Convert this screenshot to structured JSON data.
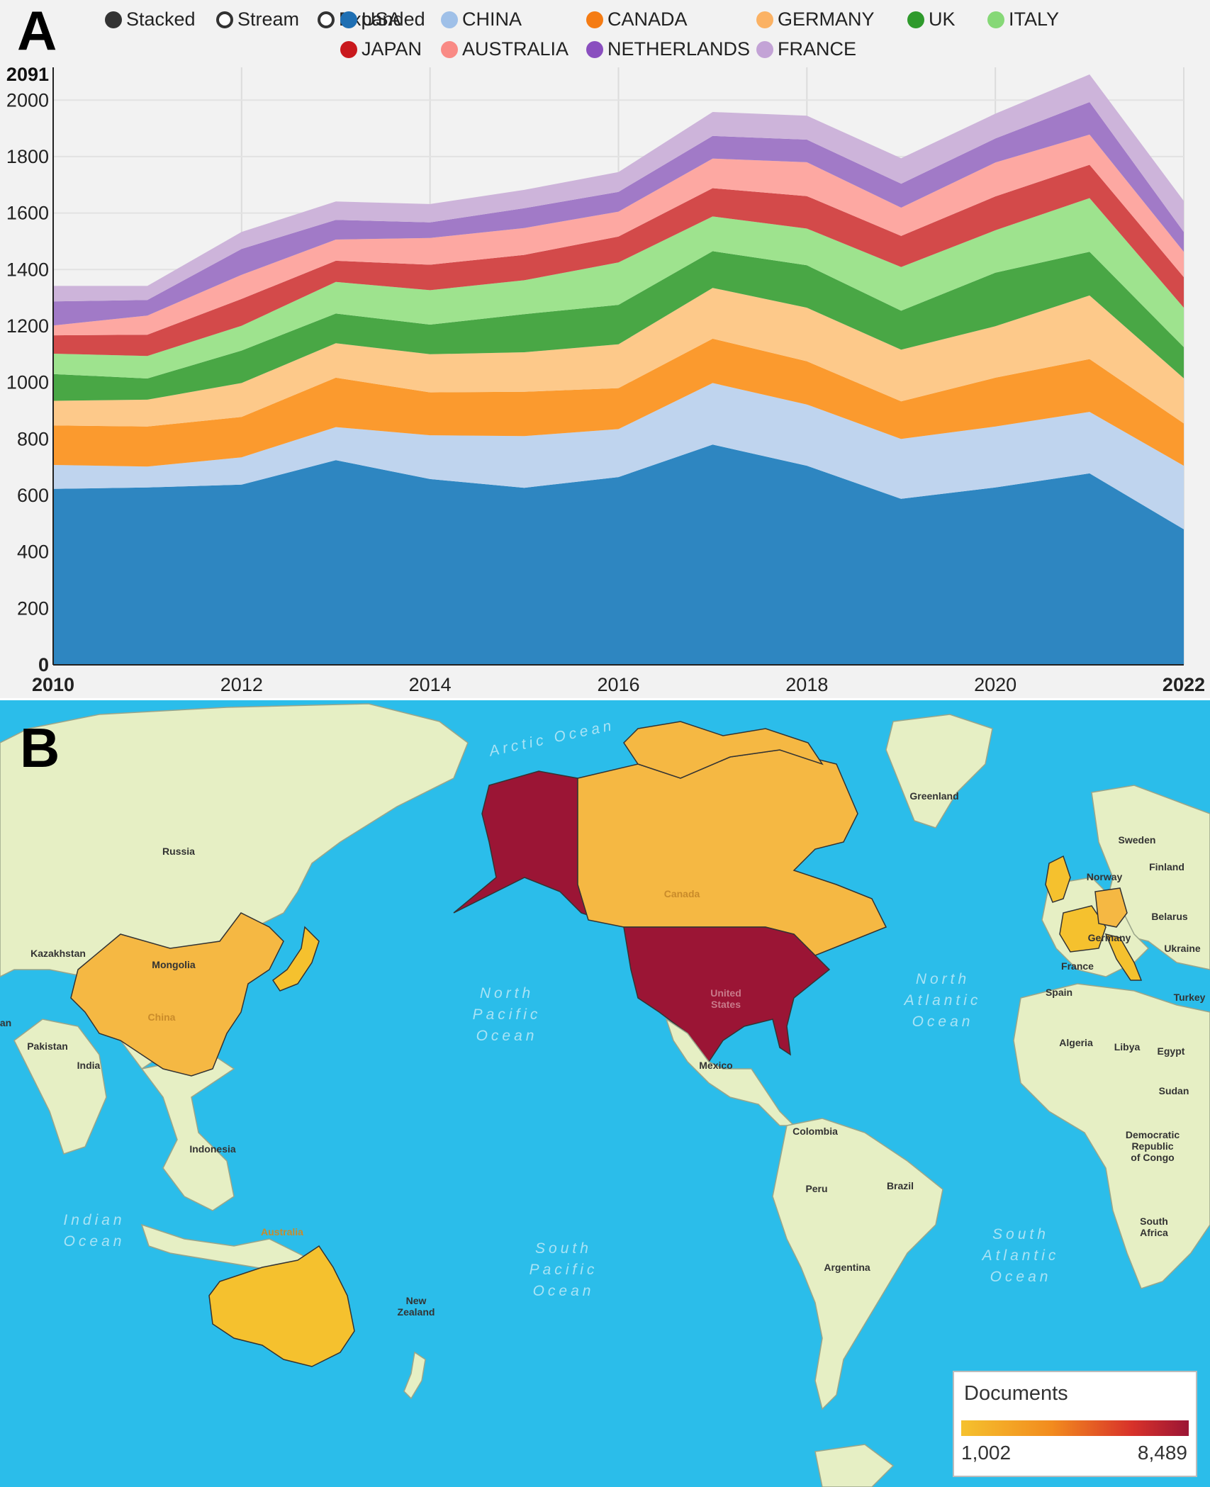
{
  "panel_a": {
    "letter": "A",
    "mode_options": [
      "Stacked",
      "Stream",
      "Expanded"
    ],
    "selected_mode": "Stacked"
  },
  "panel_b": {
    "letter": "B",
    "map_labels": {
      "russia": "Russia",
      "kazakhstan": "Kazakhstan",
      "mongolia": "Mongolia",
      "china": "China",
      "pakistan": "Pakistan",
      "india": "India",
      "indonesia": "Indonesia",
      "australia": "Australia",
      "new_zealand": "New\nZealand",
      "canada": "Canada",
      "united_states": "United\nStates",
      "mexico": "Mexico",
      "colombia": "Colombia",
      "peru": "Peru",
      "brazil": "Brazil",
      "argentina": "Argentina",
      "greenland": "Greenland",
      "sweden": "Sweden",
      "finland": "Finland",
      "norway": "Norway",
      "belarus": "Belarus",
      "ukraine": "Ukraine",
      "germany": "Germany",
      "france": "France",
      "spain": "Spain",
      "turkey": "Turkey",
      "algeria": "Algeria",
      "libya": "Libya",
      "egypt": "Egypt",
      "sudan": "Sudan",
      "drc": "Democratic\nRepublic\nof Congo",
      "south_africa": "South\nAfrica",
      "iran": "an"
    },
    "ocean_labels": {
      "arctic": "Arctic Ocean",
      "north_pacific": "North\nPacific\nOcean",
      "south_pacific": "South\nPacific\nOcean",
      "north_atlantic": "North\nAtlantic\nOcean",
      "south_atlantic": "South\nAtlantic\nOcean",
      "indian": "Indian\nOcean"
    },
    "choropleth_countries": [
      "United States",
      "Canada",
      "China",
      "Japan",
      "Australia",
      "United Kingdom",
      "Germany",
      "France",
      "Italy",
      "Netherlands"
    ],
    "color_scale": {
      "title": "Documents",
      "min": "1,002",
      "max": "8,489",
      "colors": [
        "#f5c12e",
        "#f28b1e",
        "#d8322a",
        "#9b1535"
      ]
    },
    "colors": {
      "ocean": "#2bbdea",
      "land": "#e6efc4",
      "low": "#f5b843",
      "high": "#9b1535"
    }
  },
  "chart_data": {
    "type": "area",
    "stacked": true,
    "x": [
      2010,
      2011,
      2012,
      2013,
      2014,
      2015,
      2016,
      2017,
      2018,
      2019,
      2020,
      2021,
      2022
    ],
    "x_ticks": [
      "2010",
      "2012",
      "2014",
      "2016",
      "2018",
      "2020",
      "2022"
    ],
    "y_ticks": [
      "0",
      "200",
      "400",
      "600",
      "800",
      "1000",
      "1200",
      "1400",
      "1600",
      "1800",
      "2000"
    ],
    "y_max_label": "2091",
    "ylim": [
      0,
      2091
    ],
    "grid": true,
    "legend_position": "top",
    "series": [
      {
        "name": "USA",
        "color": "#2e86c1",
        "dot": "#1f6fb3",
        "values": [
          623,
          628,
          638,
          725,
          658,
          627,
          665,
          780,
          705,
          588,
          628,
          678,
          480
        ]
      },
      {
        "name": "CHINA",
        "color": "#bfd4ee",
        "dot": "#9fc0e8",
        "values": [
          85,
          74,
          97,
          117,
          155,
          183,
          170,
          218,
          217,
          212,
          216,
          218,
          225
        ]
      },
      {
        "name": "CANADA",
        "color": "#fb9a2e",
        "dot": "#f57c14",
        "values": [
          140,
          142,
          143,
          175,
          152,
          157,
          145,
          157,
          153,
          133,
          173,
          187,
          150
        ]
      },
      {
        "name": "GERMANY",
        "color": "#fdc98a",
        "dot": "#fbb264",
        "values": [
          87,
          95,
          120,
          122,
          135,
          140,
          155,
          180,
          190,
          183,
          182,
          225,
          160
        ]
      },
      {
        "name": "UK",
        "color": "#49a745",
        "dot": "#2f9a2c",
        "values": [
          95,
          75,
          115,
          105,
          105,
          135,
          140,
          130,
          150,
          138,
          190,
          155,
          110
        ]
      },
      {
        "name": "ITALY",
        "color": "#9ee38e",
        "dot": "#86d877",
        "values": [
          72,
          80,
          88,
          112,
          122,
          120,
          150,
          123,
          130,
          155,
          150,
          190,
          140
        ]
      },
      {
        "name": "JAPAN",
        "color": "#d34a4a",
        "dot": "#c9191d",
        "values": [
          65,
          75,
          95,
          75,
          90,
          90,
          92,
          100,
          115,
          110,
          120,
          118,
          108
        ]
      },
      {
        "name": "AUSTRALIA",
        "color": "#fda8a2",
        "dot": "#f98a85",
        "values": [
          35,
          68,
          85,
          75,
          95,
          95,
          88,
          105,
          120,
          100,
          120,
          107,
          90
        ]
      },
      {
        "name": "NETHERLANDS",
        "color": "#a17ac7",
        "dot": "#8a4fbf",
        "values": [
          85,
          55,
          92,
          70,
          55,
          70,
          70,
          80,
          80,
          85,
          85,
          115,
          70
        ]
      },
      {
        "name": "FRANCE",
        "color": "#cdb4da",
        "dot": "#c3a3d6",
        "values": [
          55,
          50,
          60,
          65,
          65,
          65,
          70,
          85,
          85,
          90,
          88,
          98,
          110
        ]
      }
    ]
  }
}
